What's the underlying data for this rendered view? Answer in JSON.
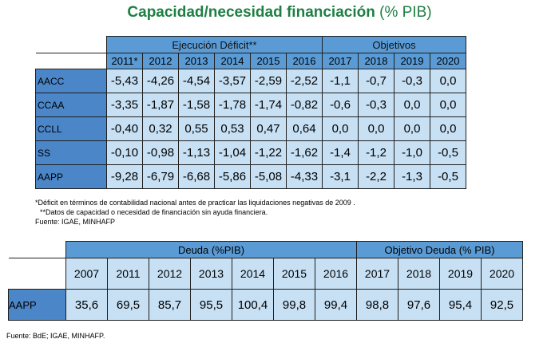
{
  "title": {
    "main": "Capacidad/necesidad financiación",
    "sub": "(% PIB)"
  },
  "table1": {
    "group_execution": "Ejecución Déficit**",
    "group_objectives": "Objetivos",
    "years": [
      "2011*",
      "2012",
      "2013",
      "2014",
      "2015",
      "2016",
      "2017",
      "2018",
      "2019",
      "2020"
    ],
    "rows": [
      {
        "label": "AACC",
        "values": [
          "-5,43",
          "-4,26",
          "-4,54",
          "-3,57",
          "-2,59",
          "-2,52",
          "-1,1",
          "-0,7",
          "-0,3",
          "0,0"
        ]
      },
      {
        "label": "CCAA",
        "values": [
          "-3,35",
          "-1,87",
          "-1,58",
          "-1,78",
          "-1,74",
          "-0,82",
          "-0,6",
          "-0,3",
          "0,0",
          "0,0"
        ]
      },
      {
        "label": "CCLL",
        "values": [
          "-0,40",
          "0,32",
          "0,55",
          "0,53",
          "0,47",
          "0,64",
          "0,0",
          "0,0",
          "0,0",
          "0,0"
        ]
      },
      {
        "label": "SS",
        "values": [
          "-0,10",
          "-0,98",
          "-1,13",
          "-1,04",
          "-1,22",
          "-1,62",
          "-1,4",
          "-1,2",
          "-1,0",
          "-0,5"
        ]
      },
      {
        "label": "AAPP",
        "values": [
          "-9,28",
          "-6,79",
          "-6,68",
          "-5,86",
          "-5,08",
          "-4,33",
          "-3,1",
          "-2,2",
          "-1,3",
          "-0,5"
        ]
      }
    ]
  },
  "notes": {
    "note1": "*Déficit en términos de contabilidad nacional  antes de practicar las liquidaciones negativas  de 2009 .",
    "note2": "**Datos de capacidad o necesidad de financiación sin ayuda financiera.",
    "source1": "Fuente: IGAE, MINHAFP"
  },
  "table2": {
    "group_debt": "Deuda (%PIB)",
    "group_objective": "Objetivo Deuda (% PIB)",
    "years": [
      "2007",
      "2011",
      "2012",
      "2013",
      "2014",
      "2015",
      "2016",
      "2017",
      "2018",
      "2019",
      "2020"
    ],
    "row": {
      "label": "AAPP",
      "values": [
        "35,6",
        "69,5",
        "85,7",
        "95,5",
        "100,4",
        "99,8",
        "99,4",
        "98,8",
        "97,6",
        "95,4",
        "92,5"
      ]
    }
  },
  "source2": "Fuente: BdE; IGAE, MINHAFP."
}
